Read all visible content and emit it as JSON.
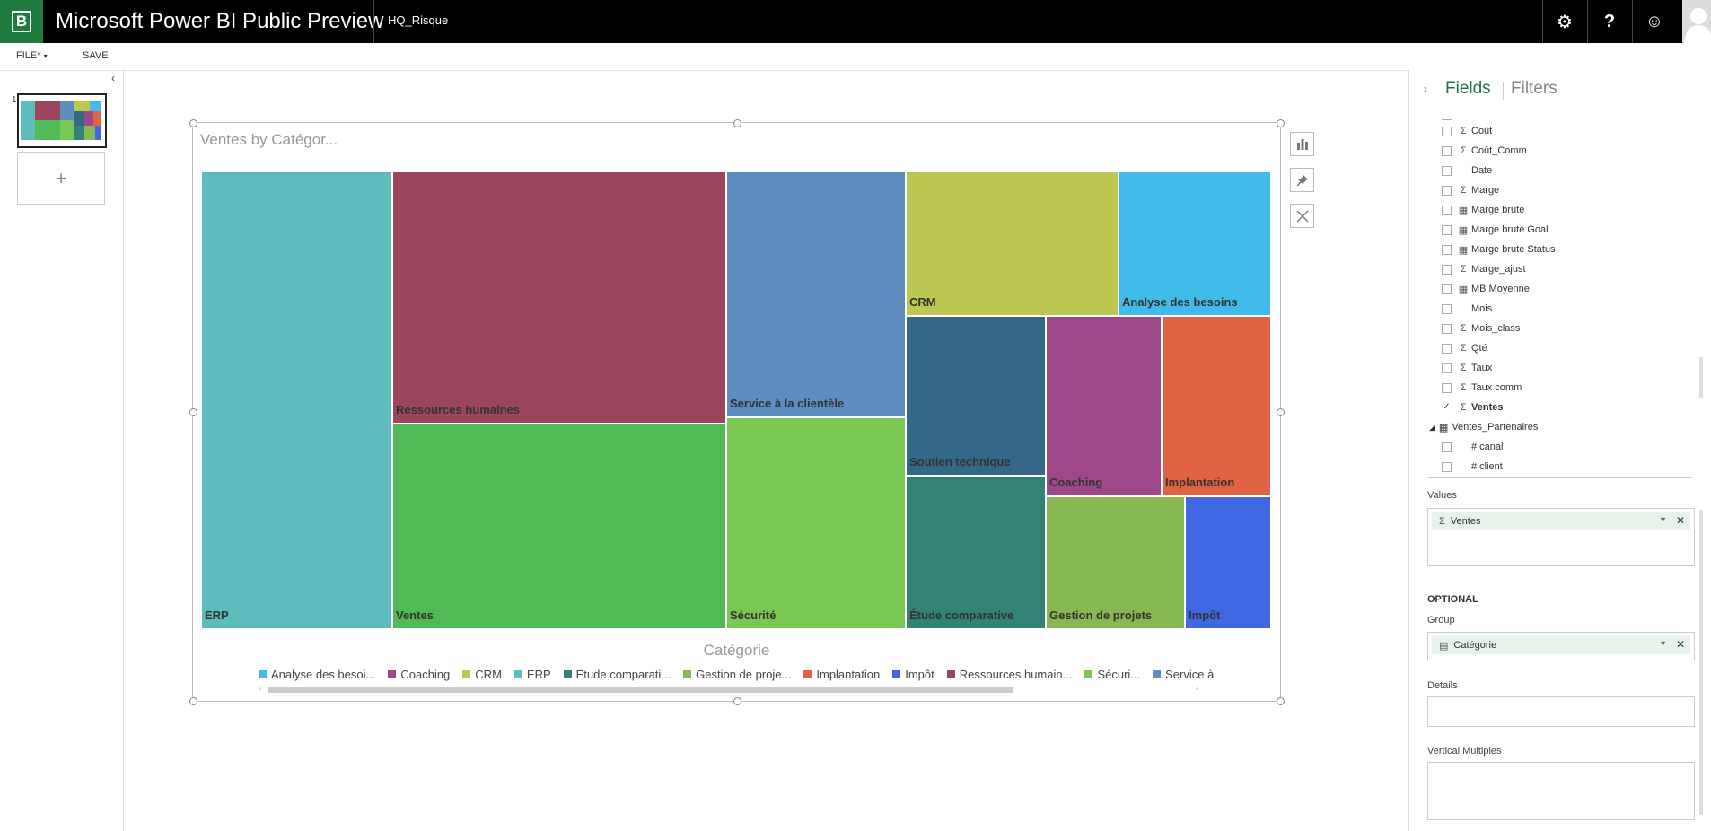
{
  "header": {
    "app_title": "Microsoft Power BI Public Preview",
    "doc_title": "HQ_Risque",
    "icons": [
      "gear-icon",
      "help-icon",
      "smiley-icon",
      "avatar"
    ]
  },
  "menu": {
    "file_label": "FILE*",
    "save_label": "SAVE"
  },
  "pages": {
    "current": "1"
  },
  "visual": {
    "title": "Ventes by Catégor...",
    "axis_title": "Catégorie"
  },
  "chart_data": {
    "type": "treemap",
    "title": "Ventes by Catégor...",
    "xlabel": "Catégorie",
    "legend": [
      "Analyse des besoi...",
      "Coaching",
      "CRM",
      "ERP",
      "Étude comparati...",
      "Gestion de proje...",
      "Implantation",
      "Impôt",
      "Ressources humain...",
      "Sécuri...",
      "Service à"
    ],
    "tiles": [
      {
        "label": "ERP",
        "color": "#5fbcbc",
        "value": 17.7
      },
      {
        "label": "Ressources humaines",
        "color": "#9c465d",
        "value": 15.0
      },
      {
        "label": "Ventes",
        "color": "#52b957",
        "value": 16.4
      },
      {
        "label": "Service à la clientèle",
        "color": "#5d8ebf",
        "value": 9.1
      },
      {
        "label": "Sécurité",
        "color": "#7ac854",
        "value": 7.6
      },
      {
        "label": "CRM",
        "color": "#bcc84f",
        "value": 6.3
      },
      {
        "label": "Analyse des besoins",
        "color": "#41bcea",
        "value": 4.7
      },
      {
        "label": "Soutien technique",
        "color": "#336987",
        "value": 4.6
      },
      {
        "label": "Coaching",
        "color": "#9e4889",
        "value": 4.3
      },
      {
        "label": "Implantation",
        "color": "#de6443",
        "value": 4.2
      },
      {
        "label": "Étude comparative",
        "color": "#328275",
        "value": 3.8
      },
      {
        "label": "Gestion de projets",
        "color": "#88b854",
        "value": 3.3
      },
      {
        "label": "Impôt",
        "color": "#4068e2",
        "value": 2.0
      }
    ]
  },
  "fields": {
    "header": "Fields",
    "filters": "Filters",
    "items": [
      {
        "label": "Coût",
        "type": "Σ",
        "checked": false
      },
      {
        "label": "Coût_Comm",
        "type": "Σ",
        "checked": false
      },
      {
        "label": "Date",
        "type": "",
        "checked": false
      },
      {
        "label": "Marge",
        "type": "Σ",
        "checked": false
      },
      {
        "label": "Marge brute",
        "type": "▦",
        "checked": false
      },
      {
        "label": "Marge brute Goal",
        "type": "▦",
        "checked": false
      },
      {
        "label": "Marge brute Status",
        "type": "▦",
        "checked": false
      },
      {
        "label": "Marge_ajust",
        "type": "Σ",
        "checked": false
      },
      {
        "label": "MB Moyenne",
        "type": "▦",
        "checked": false
      },
      {
        "label": "Mois",
        "type": "",
        "checked": false
      },
      {
        "label": "Mois_class",
        "type": "Σ",
        "checked": false
      },
      {
        "label": "Qté",
        "type": "Σ",
        "checked": false
      },
      {
        "label": "Taux",
        "type": "Σ",
        "checked": false
      },
      {
        "label": "Taux comm",
        "type": "Σ",
        "checked": false
      },
      {
        "label": "Ventes",
        "type": "Σ",
        "checked": true
      }
    ],
    "table2": {
      "label": "Ventes_Partenaires",
      "items": [
        {
          "label": "# canal"
        },
        {
          "label": "# client"
        }
      ]
    }
  },
  "wells": {
    "values_label": "Values",
    "values_item": "Ventes",
    "optional_label": "OPTIONAL",
    "group_label": "Group",
    "group_item": "Catégorie",
    "details_label": "Details",
    "vertical_label": "Vertical Multiples"
  }
}
